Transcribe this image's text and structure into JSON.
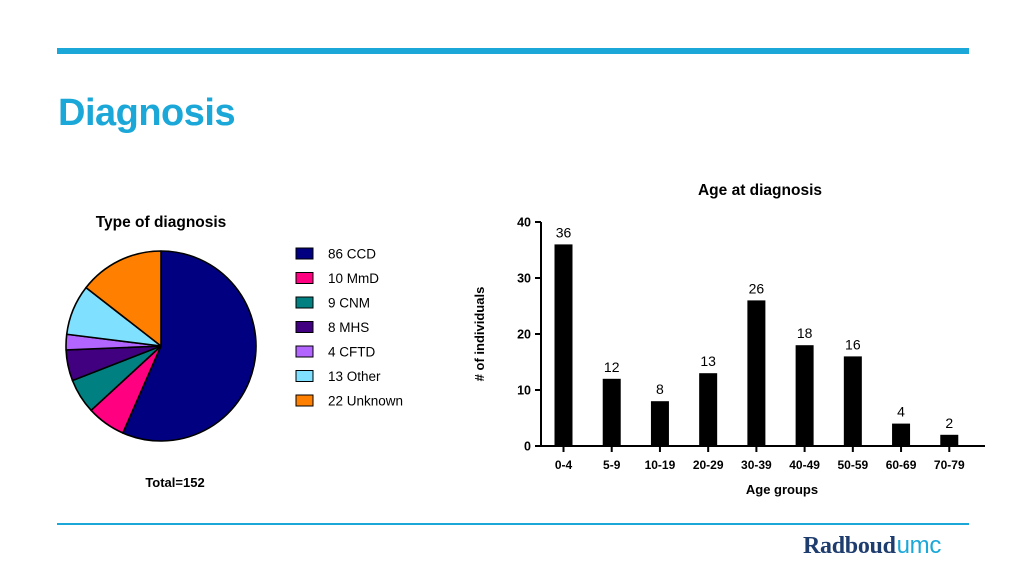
{
  "slide": {
    "title": "Diagnosis",
    "logo": {
      "part1": "Radboud",
      "part2": "umc"
    }
  },
  "colors": {
    "accent": "#1ba8d8",
    "logo_dark": "#1e3d6e"
  },
  "chart_data": [
    {
      "type": "pie",
      "title": "Type of diagnosis",
      "footer": "Total=152",
      "slices": [
        {
          "label": "86 CCD",
          "value": 86,
          "color": "#000080"
        },
        {
          "label": "10 MmD",
          "value": 10,
          "color": "#ff0080"
        },
        {
          "label": "9 CNM",
          "value": 9,
          "color": "#008080"
        },
        {
          "label": "8 MHS",
          "value": 8,
          "color": "#400080"
        },
        {
          "label": "4 CFTD",
          "value": 4,
          "color": "#b366ff"
        },
        {
          "label": "13 Other",
          "value": 13,
          "color": "#80e0ff"
        },
        {
          "label": "22 Unknown",
          "value": 22,
          "color": "#ff8000"
        }
      ],
      "legend": "right"
    },
    {
      "type": "bar",
      "title": "Age at diagnosis",
      "xlabel": "Age groups",
      "ylabel": "# of individuals",
      "categories": [
        "0-4",
        "5-9",
        "10-19",
        "20-29",
        "30-39",
        "40-49",
        "50-59",
        "60-69",
        "70-79"
      ],
      "values": [
        36,
        12,
        8,
        13,
        26,
        18,
        16,
        4,
        2
      ],
      "ylim": [
        0,
        40
      ],
      "yticks": [
        0,
        10,
        20,
        30,
        40
      ],
      "bar_color": "#000000",
      "grid": false
    }
  ]
}
